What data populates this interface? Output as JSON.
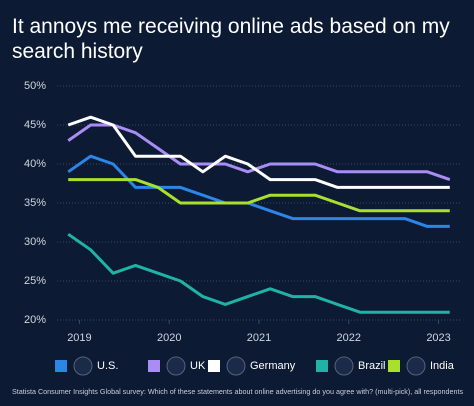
{
  "chart_data": {
    "type": "line",
    "title_lines": [
      "It annoys me receiving online ads based on my",
      "search history"
    ],
    "footnote": "Statista Consumer Insights Global survey: Which of these statements about online advertising do you agree with? (multi-pick), all respondents",
    "x": [
      2018.875,
      2019.125,
      2019.375,
      2019.625,
      2019.875,
      2020.125,
      2020.375,
      2020.625,
      2020.875,
      2021.125,
      2021.375,
      2021.625,
      2021.875,
      2022.125,
      2022.375,
      2022.625,
      2022.875,
      2023.125
    ],
    "xlim": [
      2018.75,
      2023.25
    ],
    "xticks": [
      2019,
      2020,
      2021,
      2022,
      2023
    ],
    "ylim": [
      20,
      50
    ],
    "yticks": [
      {
        "value": 20,
        "label": "20%"
      },
      {
        "value": 25,
        "label": "25%"
      },
      {
        "value": 30,
        "label": "30%"
      },
      {
        "value": 35,
        "label": "35%"
      },
      {
        "value": 40,
        "label": "40%"
      },
      {
        "value": 45,
        "label": "45%"
      },
      {
        "value": 50,
        "label": "50%"
      }
    ],
    "grid": true,
    "series": [
      {
        "name": "U.S.",
        "color": "#2b86e8",
        "values": [
          39,
          41,
          40,
          37,
          37,
          37,
          36,
          35,
          35,
          34,
          33,
          33,
          33,
          33,
          33,
          33,
          32,
          32
        ]
      },
      {
        "name": "UK",
        "color": "#a98df5",
        "values": [
          43,
          45,
          45,
          44,
          42,
          40,
          40,
          40,
          39,
          40,
          40,
          40,
          39,
          39,
          39,
          39,
          39,
          38
        ]
      },
      {
        "name": "Germany",
        "color": "#ffffff",
        "values": [
          45,
          46,
          45,
          41,
          41,
          41,
          39,
          41,
          40,
          38,
          38,
          38,
          37,
          37,
          37,
          37,
          37,
          37
        ]
      },
      {
        "name": "Brazil",
        "color": "#1fb3a6",
        "values": [
          31,
          29,
          26,
          27,
          26,
          25,
          23,
          22,
          23,
          24,
          23,
          23,
          22,
          21,
          21,
          21,
          21,
          21
        ]
      },
      {
        "name": "India",
        "color": "#a8e02c",
        "values": [
          38,
          38,
          38,
          38,
          37,
          35,
          35,
          35,
          35,
          36,
          36,
          36,
          35,
          34,
          34,
          34,
          34,
          34
        ]
      }
    ]
  }
}
